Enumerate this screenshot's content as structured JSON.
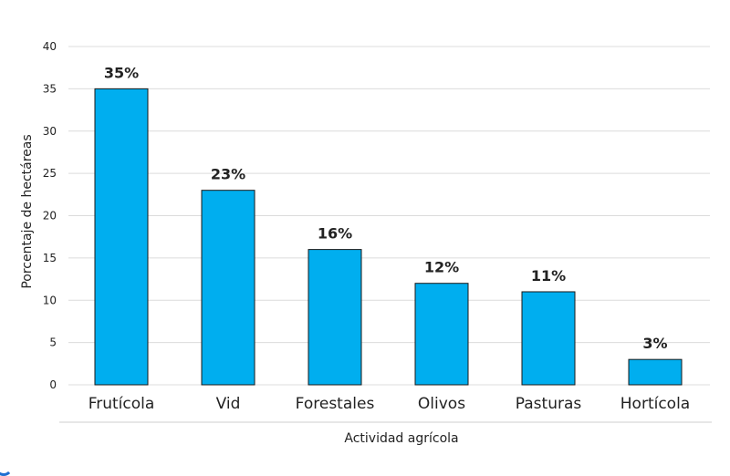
{
  "chart_data": {
    "type": "bar",
    "categories": [
      "Frutícola",
      "Vid",
      "Forestales",
      "Olivos",
      "Pasturas",
      "Hortícola"
    ],
    "values": [
      35,
      23,
      16,
      12,
      11,
      3
    ],
    "data_labels": [
      "35%",
      "23%",
      "16%",
      "12%",
      "11%",
      "3%"
    ],
    "xlabel": "Actividad agrícola",
    "ylabel": "Porcentaje de hectáreas",
    "ylim": [
      0,
      40
    ],
    "yticks": [
      0,
      5,
      10,
      15,
      20,
      25,
      30,
      35,
      40
    ],
    "grid": true,
    "bar_color": "#00aeef",
    "bar_edge_color": "#1a1a1a"
  }
}
